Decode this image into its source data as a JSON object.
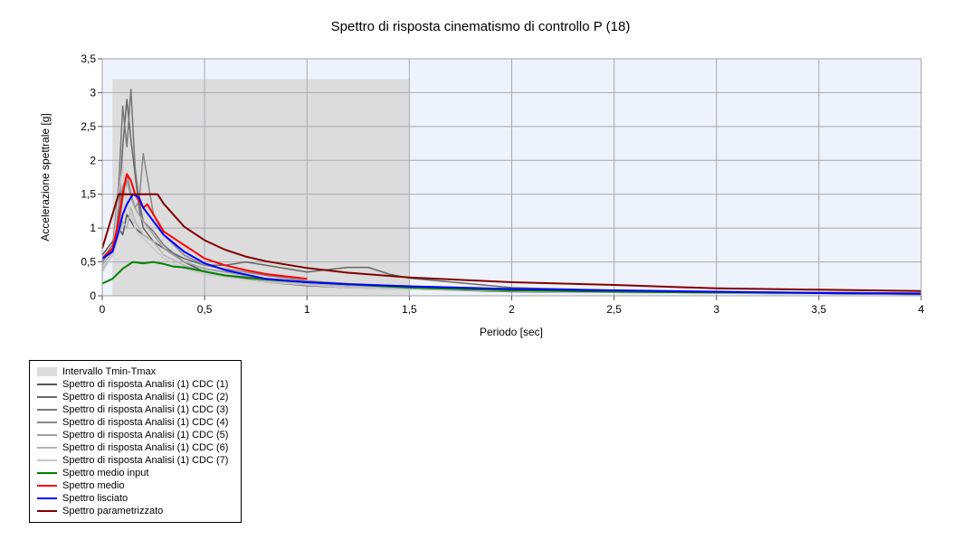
{
  "chart_data": {
    "type": "line",
    "title": "Spettro di risposta cinematismo di controllo P (18)",
    "xlabel": "Periodo [sec]",
    "ylabel": "Accelerazione spettrale [g]",
    "xlim": [
      0,
      4
    ],
    "ylim": [
      0,
      3.5
    ],
    "x_ticks": [
      "0",
      "0,5",
      "1",
      "1,5",
      "2",
      "2,5",
      "3",
      "3,5",
      "4"
    ],
    "y_ticks": [
      "0",
      "0,5",
      "1",
      "1,5",
      "2",
      "2,5",
      "3",
      "3,5"
    ],
    "grid": true,
    "legend_position": "bottom-left, below plot",
    "interval": {
      "name": "Intervallo Tmin-Tmax",
      "x": [
        0.05,
        1.5
      ],
      "y_top": 3.2,
      "color": "#dcdcdc"
    },
    "series": [
      {
        "name": "Spettro di risposta Analisi (1) CDC (1)",
        "color": "#555555",
        "x": [
          0,
          0.05,
          0.08,
          0.1,
          0.12,
          0.14,
          0.16,
          0.18,
          0.2,
          0.25,
          0.3,
          0.4,
          0.5,
          0.6,
          0.7,
          0.8,
          1.0,
          1.2,
          1.5,
          2,
          2.5,
          3,
          3.5,
          4
        ],
        "y": [
          0.6,
          0.8,
          1.0,
          0.9,
          1.2,
          1.1,
          1.0,
          0.95,
          0.9,
          0.8,
          0.7,
          0.5,
          0.35,
          0.3,
          0.25,
          0.2,
          0.15,
          0.12,
          0.1,
          0.06,
          0.05,
          0.04,
          0.03,
          0.02
        ]
      },
      {
        "name": "Spettro di risposta Analisi (1) CDC (2)",
        "color": "#666666",
        "x": [
          0,
          0.05,
          0.08,
          0.1,
          0.12,
          0.14,
          0.16,
          0.18,
          0.2,
          0.25,
          0.3,
          0.4,
          0.5,
          0.6,
          0.7,
          0.8,
          1.0,
          1.2,
          1.3,
          1.4,
          1.5,
          2,
          2.5,
          3,
          3.5,
          4
        ],
        "y": [
          0.5,
          0.7,
          1.2,
          2.2,
          2.9,
          2.3,
          1.8,
          1.3,
          1.0,
          0.8,
          0.7,
          0.55,
          0.45,
          0.45,
          0.5,
          0.45,
          0.35,
          0.42,
          0.42,
          0.32,
          0.26,
          0.12,
          0.08,
          0.06,
          0.05,
          0.04
        ]
      },
      {
        "name": "Spettro di risposta Analisi (1) CDC (3)",
        "color": "#777777",
        "x": [
          0,
          0.05,
          0.08,
          0.1,
          0.12,
          0.14,
          0.16,
          0.18,
          0.2,
          0.25,
          0.3,
          0.4,
          0.5,
          0.6,
          0.7,
          0.8,
          1.0,
          1.2,
          1.5,
          2,
          2.5,
          3,
          3.5,
          4
        ],
        "y": [
          0.5,
          0.7,
          1.6,
          2.8,
          2.2,
          3.05,
          1.9,
          1.4,
          1.1,
          0.95,
          0.75,
          0.5,
          0.4,
          0.35,
          0.3,
          0.25,
          0.2,
          0.15,
          0.12,
          0.08,
          0.06,
          0.05,
          0.04,
          0.03
        ]
      },
      {
        "name": "Spettro di risposta Analisi (1) CDC (4)",
        "color": "#888888",
        "x": [
          0,
          0.05,
          0.08,
          0.1,
          0.12,
          0.14,
          0.16,
          0.18,
          0.2,
          0.25,
          0.3,
          0.4,
          0.5,
          0.6,
          0.7,
          0.8,
          1.0,
          1.2,
          1.5,
          2,
          2.5,
          3,
          3.5,
          4
        ],
        "y": [
          0.55,
          0.75,
          1.3,
          1.6,
          1.8,
          1.5,
          1.3,
          1.4,
          2.1,
          1.2,
          0.9,
          0.6,
          0.45,
          0.4,
          0.35,
          0.3,
          0.22,
          0.18,
          0.14,
          0.08,
          0.06,
          0.05,
          0.04,
          0.03
        ]
      },
      {
        "name": "Spettro di risposta Analisi (1) CDC (5)",
        "color": "#a0a0a0",
        "x": [
          0,
          0.05,
          0.08,
          0.1,
          0.12,
          0.14,
          0.16,
          0.18,
          0.2,
          0.25,
          0.3,
          0.4,
          0.5,
          0.6,
          0.7,
          0.8,
          1.0,
          1.2,
          1.5,
          2,
          2.5,
          3,
          3.5,
          4
        ],
        "y": [
          0.45,
          0.65,
          1.0,
          1.4,
          1.7,
          1.45,
          1.3,
          1.2,
          1.1,
          0.9,
          0.7,
          0.5,
          0.4,
          0.35,
          0.3,
          0.25,
          0.2,
          0.15,
          0.12,
          0.08,
          0.06,
          0.05,
          0.04,
          0.03
        ]
      },
      {
        "name": "Spettro di risposta Analisi (1) CDC (6)",
        "color": "#b4b4b4",
        "x": [
          0,
          0.05,
          0.08,
          0.1,
          0.12,
          0.14,
          0.16,
          0.18,
          0.2,
          0.25,
          0.3,
          0.4,
          0.5,
          0.6,
          0.7,
          0.8,
          1.0,
          1.2,
          1.5,
          2,
          2.5,
          3,
          3.5,
          4
        ],
        "y": [
          0.4,
          0.6,
          0.9,
          1.1,
          1.0,
          1.3,
          1.1,
          1.0,
          0.9,
          0.8,
          0.6,
          0.45,
          0.35,
          0.3,
          0.28,
          0.22,
          0.18,
          0.14,
          0.1,
          0.07,
          0.05,
          0.04,
          0.03,
          0.02
        ]
      },
      {
        "name": "Spettro di risposta Analisi (1) CDC (7)",
        "color": "#c8c8c8",
        "x": [
          0,
          0.05,
          0.08,
          0.1,
          0.12,
          0.14,
          0.16,
          0.18,
          0.2,
          0.25,
          0.3,
          0.4,
          0.5,
          0.6,
          0.7,
          0.8,
          1.0,
          1.2,
          1.5,
          2,
          2.5,
          3,
          3.5,
          4
        ],
        "y": [
          0.35,
          0.6,
          1.5,
          1.9,
          1.4,
          1.2,
          1.0,
          0.9,
          0.85,
          0.7,
          0.55,
          0.4,
          0.32,
          0.28,
          0.24,
          0.2,
          0.16,
          0.12,
          0.1,
          0.07,
          0.05,
          0.04,
          0.03,
          0.02
        ]
      },
      {
        "name": "Spettro medio input",
        "color": "#008000",
        "x": [
          0,
          0.05,
          0.1,
          0.15,
          0.2,
          0.25,
          0.3,
          0.35,
          0.4,
          0.5,
          0.6,
          0.7,
          0.8,
          1.0,
          1.2,
          1.5,
          2,
          2.5,
          3,
          3.5,
          4
        ],
        "y": [
          0.18,
          0.25,
          0.4,
          0.5,
          0.48,
          0.5,
          0.47,
          0.43,
          0.42,
          0.36,
          0.3,
          0.27,
          0.24,
          0.2,
          0.17,
          0.12,
          0.08,
          0.06,
          0.05,
          0.04,
          0.03
        ]
      },
      {
        "name": "Spettro medio",
        "color": "#ff0000",
        "x": [
          0,
          0.05,
          0.08,
          0.1,
          0.12,
          0.14,
          0.16,
          0.18,
          0.2,
          0.22,
          0.25,
          0.3,
          0.35,
          0.4,
          0.45,
          0.5,
          0.6,
          0.7,
          0.8,
          1.0
        ],
        "y": [
          0.55,
          0.7,
          1.1,
          1.5,
          1.8,
          1.7,
          1.5,
          1.4,
          1.3,
          1.35,
          1.2,
          0.95,
          0.85,
          0.75,
          0.65,
          0.55,
          0.45,
          0.38,
          0.32,
          0.25
        ]
      },
      {
        "name": "Spettro lisciato",
        "color": "#0000ff",
        "x": [
          0,
          0.05,
          0.08,
          0.1,
          0.12,
          0.15,
          0.18,
          0.2,
          0.25,
          0.3,
          0.4,
          0.5,
          0.6,
          0.8,
          1.0,
          1.2,
          1.5,
          2,
          2.5,
          3,
          3.5,
          4
        ],
        "y": [
          0.55,
          0.65,
          0.95,
          1.2,
          1.35,
          1.5,
          1.45,
          1.3,
          1.1,
          0.9,
          0.65,
          0.48,
          0.38,
          0.25,
          0.2,
          0.17,
          0.14,
          0.1,
          0.08,
          0.06,
          0.04,
          0.03
        ]
      },
      {
        "name": "Spettro parametrizzato",
        "color": "#800000",
        "x": [
          0,
          0.08,
          0.27,
          0.3,
          0.4,
          0.5,
          0.6,
          0.7,
          0.8,
          1.0,
          1.2,
          1.5,
          2,
          2.5,
          3,
          3.5,
          4
        ],
        "y": [
          0.7,
          1.5,
          1.5,
          1.36,
          1.02,
          0.82,
          0.68,
          0.58,
          0.51,
          0.41,
          0.34,
          0.27,
          0.2,
          0.16,
          0.11,
          0.09,
          0.07
        ]
      }
    ]
  }
}
